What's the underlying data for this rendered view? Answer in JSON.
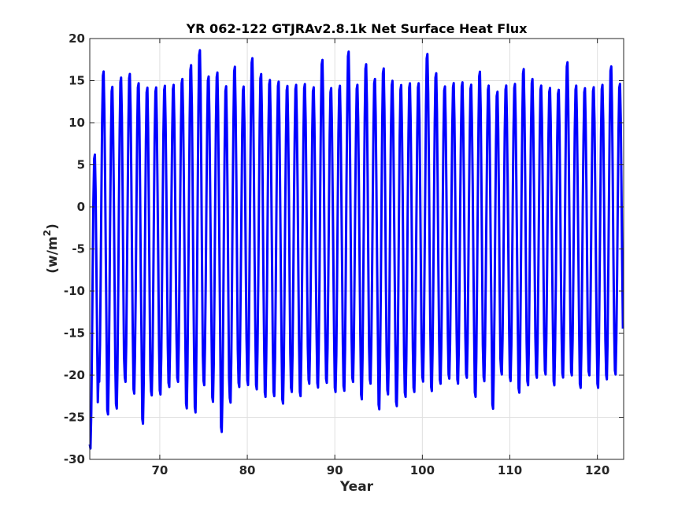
{
  "chart_data": {
    "type": "line",
    "title": "YR 062-122 GTJRAv2.8.1k Net Surface Heat Flux",
    "xlabel": "Year",
    "ylabel_main": "(w/m",
    "ylabel_sup": "2",
    "ylabel_close": ")",
    "xlim": [
      62,
      123
    ],
    "ylim": [
      -30,
      20
    ],
    "grid": true,
    "x_ticks": [
      70,
      80,
      90,
      100,
      110,
      120
    ],
    "y_ticks": [
      -30,
      -25,
      -20,
      -15,
      -10,
      -5,
      0,
      5,
      10,
      15,
      20
    ],
    "x_tick_labels": [
      "70",
      "80",
      "90",
      "100",
      "110",
      "120"
    ],
    "y_tick_labels": [
      "-30",
      "-25",
      "-20",
      "-15",
      "-10",
      "-5",
      "0",
      "5",
      "10",
      "15",
      "20"
    ],
    "series": [
      {
        "color": "#0000ff",
        "line_width": 3,
        "samples_per_year": 12,
        "start_year": 62,
        "annual_maxima": [
          6.6,
          16.5,
          14.7,
          15.8,
          16.2,
          15.1,
          14.6,
          14.6,
          14.8,
          14.9,
          15.6,
          17.3,
          19.1,
          15.9,
          16.4,
          14.8,
          17.1,
          14.7,
          18.1,
          16.2,
          15.5,
          15.3,
          14.8,
          14.9,
          15.0,
          14.6,
          17.9,
          14.5,
          14.8,
          18.9,
          14.9,
          17.4,
          15.6,
          16.9,
          15.4,
          14.9,
          15.1,
          15.1,
          18.6,
          16.3,
          14.7,
          15.1,
          15.2,
          14.9,
          16.5,
          14.8,
          14.1,
          14.8,
          15.0,
          16.8,
          15.6,
          14.8,
          14.5,
          14.3,
          17.6,
          14.8,
          14.5,
          14.6,
          14.9,
          17.1,
          15.0
        ],
        "annual_minima": [
          -29.1,
          -21.2,
          -25.1,
          -24.4,
          -21.2,
          -22.6,
          -26.2,
          -22.8,
          -22.7,
          -21.8,
          -21.2,
          -24.4,
          -24.9,
          -21.6,
          -23.6,
          -27.2,
          -23.7,
          -21.8,
          -21.6,
          -22.1,
          -23.0,
          -22.9,
          -23.8,
          -22.4,
          -22.9,
          -21.4,
          -21.9,
          -21.3,
          -22.4,
          -22.3,
          -21.2,
          -23.3,
          -21.4,
          -24.5,
          -22.7,
          -24.1,
          -23.0,
          -22.4,
          -21.2,
          -22.3,
          -21.4,
          -20.8,
          -21.4,
          -20.7,
          -23.0,
          -21.1,
          -24.4,
          -20.3,
          -21.1,
          -22.5,
          -21.6,
          -20.7,
          -20.3,
          -21.6,
          -20.7,
          -20.4,
          -21.9,
          -20.4,
          -21.9,
          -20.9,
          -20.3
        ]
      }
    ]
  }
}
